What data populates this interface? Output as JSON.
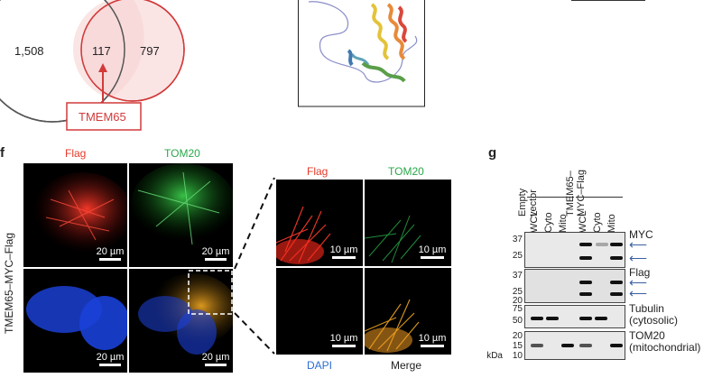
{
  "venn": {
    "left_count": "1,508",
    "overlap_count": "117",
    "right_count": "797",
    "callout_label": "TMEM65",
    "colors": {
      "left_stroke": "#555555",
      "right_stroke": "#d23a3a",
      "right_fill": "#fbe4e4",
      "callout": "#d23a3a"
    }
  },
  "panel_f": {
    "letter": "f",
    "row_label": "TMEM65–MYC–Flag",
    "col_labels": {
      "flag": "Flag",
      "tom20": "TOM20"
    },
    "overview_scales": [
      "20 µm",
      "20 µm",
      "20 µm",
      "20 µm"
    ],
    "zoom_labels": {
      "flag": "Flag",
      "tom20": "TOM20",
      "dapi": "DAPI",
      "merge": "Merge"
    },
    "zoom_scales": [
      "10 µm",
      "10 µm",
      "10 µm",
      "10 µm"
    ],
    "colors": {
      "flag": "#e53a2a",
      "tom20": "#2aa84a",
      "dapi": "#2a6cd4",
      "merge": "#222222"
    }
  },
  "panel_g": {
    "letter": "g",
    "groups": [
      "Empty vector",
      "TMEM65–MYC–Flag"
    ],
    "group_lines": {
      "empty": [
        "Empty",
        "vector"
      ],
      "tmem": [
        "TMEM65–",
        "MYC–Flag"
      ]
    },
    "lanes": [
      "WCL",
      "Cyto",
      "Mito",
      "WCL",
      "Cyto",
      "Mito"
    ],
    "blots": [
      {
        "label": "MYC",
        "markers": [
          "37",
          "25"
        ]
      },
      {
        "label": "Flag",
        "markers": [
          "37",
          "25",
          "20"
        ]
      },
      {
        "label_lines": [
          "Tubulin",
          "(cytosolic)"
        ],
        "markers": [
          "75",
          "50"
        ]
      },
      {
        "label_lines": [
          "TOM20",
          "(mitochondrial)"
        ],
        "markers": [
          "20",
          "15",
          "10"
        ]
      }
    ],
    "kda_label": "kDa",
    "arrow_icon": "left-arrow-icon",
    "arrow_color": "#3a5fa0"
  }
}
